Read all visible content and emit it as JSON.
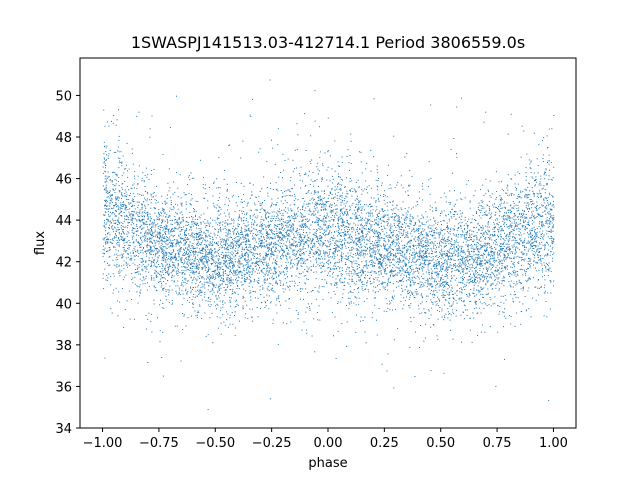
{
  "chart_data": {
    "type": "scatter",
    "title": "1SWASPJ141513.03-412714.1 Period 3806559.0s",
    "xlabel": "phase",
    "ylabel": "flux",
    "xlim": [
      -1.1,
      1.1
    ],
    "ylim": [
      34,
      51.8
    ],
    "x_ticks": [
      -1.0,
      -0.75,
      -0.5,
      -0.25,
      0.0,
      0.25,
      0.5,
      0.75,
      1.0
    ],
    "x_tick_labels": [
      "−1.00",
      "−0.75",
      "−0.50",
      "−0.25",
      "0.00",
      "0.25",
      "0.50",
      "0.75",
      "1.00"
    ],
    "y_ticks": [
      34,
      36,
      38,
      40,
      42,
      44,
      46,
      48,
      50
    ],
    "y_tick_labels": [
      "34",
      "36",
      "38",
      "40",
      "42",
      "44",
      "46",
      "48",
      "50"
    ],
    "grid": false,
    "marker_color": "#1f77b4",
    "series": [
      {
        "x": [
          -1.0,
          -0.9,
          -0.8,
          -0.7,
          -0.6,
          -0.5,
          -0.4,
          -0.3,
          -0.2,
          -0.1,
          0.0,
          0.1,
          0.2,
          0.3,
          0.4,
          0.5,
          0.6,
          0.7,
          0.8,
          0.9,
          1.0
        ],
        "y": [
          44.5,
          44.0,
          43.0,
          42.8,
          42.5,
          42.0,
          42.3,
          42.8,
          43.0,
          43.3,
          43.5,
          43.2,
          42.8,
          42.5,
          42.3,
          42.0,
          42.2,
          42.5,
          43.0,
          43.5,
          44.0
        ],
        "spread": [
          1.8,
          1.6,
          1.4,
          1.3,
          1.3,
          1.4,
          1.3,
          1.3,
          1.4,
          1.5,
          1.6,
          1.6,
          1.4,
          1.3,
          1.3,
          1.4,
          1.3,
          1.3,
          1.4,
          1.6,
          1.8
        ]
      }
    ]
  }
}
